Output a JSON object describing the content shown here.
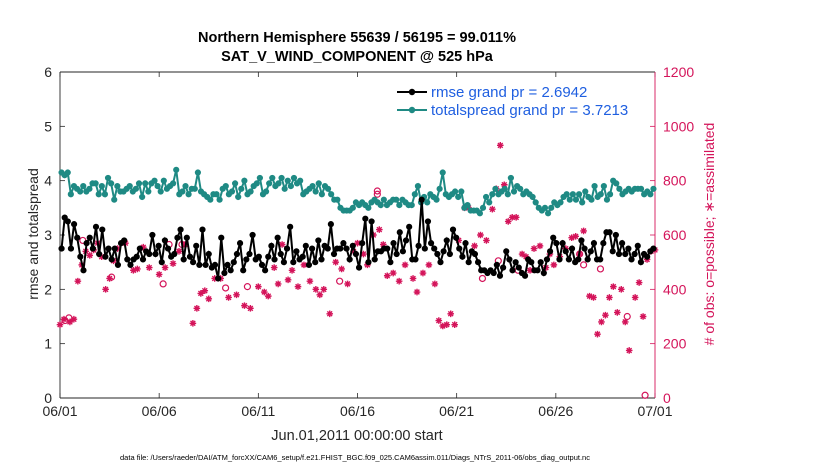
{
  "chart_data": {
    "type": "line",
    "title": "Northern Hemisphere 55639 / 56195 = 99.011%",
    "subtitle": "SAT_V_WIND_COMPONENT @ 525 hPa",
    "xlabel": "Jun.01,2011 00:00:00 start",
    "ylabel_left": "rmse and totalspread",
    "ylabel_right": "# of obs: o=possible; ∗=assimilated",
    "footer": "data file: /Users/raeder/DAI/ATM_forcXX/CAM6_setup/f.e21.FHIST_BGC.f09_025.CAM6assim.011/Diags_NTrS_2011-06/obs_diag_output.nc",
    "xlim": [
      0,
      30
    ],
    "ylim_left": [
      0,
      6
    ],
    "ylim_right": [
      0,
      1200
    ],
    "xticks": [
      0,
      5,
      10,
      15,
      20,
      25,
      30
    ],
    "xtick_labels": [
      "06/01",
      "06/06",
      "06/11",
      "06/16",
      "06/21",
      "06/26",
      "07/01"
    ],
    "yticks_left": [
      0,
      1,
      2,
      3,
      4,
      5,
      6
    ],
    "ytick_labels_left": [
      "0",
      "1",
      "2",
      "3",
      "4",
      "5",
      "6"
    ],
    "yticks_right": [
      0,
      200,
      400,
      600,
      800,
      1000,
      1200
    ],
    "ytick_labels_right": [
      "0",
      "200",
      "400",
      "600",
      "800",
      "1000",
      "1200"
    ],
    "colors": {
      "rmse": "#000000",
      "spread": "#1f8a84",
      "obs": "#d4145a",
      "legend_text": "#1f5fe0",
      "axis": "#262626",
      "right_axis": "#d4145a"
    },
    "legend": [
      {
        "name": "rmse",
        "label": "rmse grand pr = 2.6942"
      },
      {
        "name": "spread",
        "label": "totalspread grand pr = 3.7213"
      }
    ],
    "series": [
      {
        "name": "rmse",
        "values": [
          2.75,
          3.32,
          3.25,
          2.75,
          3.2,
          2.95,
          2.6,
          2.35,
          2.85,
          2.95,
          2.75,
          3.15,
          2.65,
          3.1,
          2.6,
          2.75,
          2.55,
          2.75,
          2.45,
          2.85,
          2.9,
          2.55,
          2.45,
          2.55,
          2.6,
          2.75,
          2.55,
          2.7,
          2.65,
          3.0,
          2.65,
          2.8,
          2.5,
          2.9,
          2.75,
          2.6,
          2.65,
          2.95,
          3.1,
          2.55,
          2.95,
          2.6,
          2.5,
          2.8,
          2.45,
          3.1,
          2.45,
          2.65,
          2.4,
          2.45,
          2.2,
          2.95,
          2.3,
          2.45,
          2.35,
          2.5,
          2.65,
          2.85,
          2.35,
          2.55,
          2.65,
          3.0,
          2.55,
          2.6,
          2.45,
          2.35,
          2.6,
          2.8,
          2.55,
          2.95,
          2.65,
          2.5,
          2.75,
          3.15,
          2.5,
          2.7,
          2.55,
          2.6,
          2.8,
          2.45,
          2.75,
          2.5,
          2.9,
          2.55,
          2.8,
          2.75,
          3.2,
          2.65,
          2.75,
          2.75,
          2.85,
          2.75,
          2.55,
          2.8,
          2.65,
          2.4,
          2.85,
          3.3,
          2.5,
          3.25,
          2.55,
          2.7,
          2.7,
          2.75,
          2.75,
          2.5,
          2.85,
          2.65,
          3.05,
          2.7,
          2.9,
          3.15,
          2.55,
          2.55,
          2.8,
          3.65,
          2.75,
          3.25,
          2.85,
          2.75,
          2.65,
          2.5,
          2.7,
          2.9,
          2.65,
          3.1,
          2.95,
          2.75,
          2.6,
          2.85,
          2.5,
          2.7,
          2.65,
          2.5,
          2.35,
          2.35,
          2.3,
          2.35,
          2.3,
          2.45,
          2.25,
          2.4,
          2.7,
          2.55,
          2.35,
          2.5,
          2.4,
          2.3,
          2.25,
          2.55,
          2.5,
          2.35,
          2.35,
          2.5,
          2.3,
          2.55,
          2.7,
          2.95,
          2.85,
          2.55,
          2.85,
          2.7,
          2.55,
          2.75,
          2.5,
          2.55,
          2.9,
          2.75,
          2.55,
          2.7,
          2.85,
          2.55,
          2.55,
          2.85,
          3.05,
          3.05,
          2.7,
          3.0,
          2.65,
          2.85,
          2.65,
          2.75,
          2.55,
          2.65,
          2.8,
          2.5,
          2.65,
          2.6,
          2.7,
          2.75
        ]
      },
      {
        "name": "spread",
        "values": [
          4.15,
          4.1,
          4.15,
          3.75,
          3.9,
          3.85,
          3.8,
          3.9,
          3.8,
          3.85,
          3.95,
          3.95,
          3.75,
          3.9,
          3.75,
          4.05,
          3.95,
          3.65,
          3.9,
          3.8,
          3.8,
          3.85,
          3.9,
          3.8,
          3.85,
          3.95,
          3.7,
          3.95,
          3.8,
          3.95,
          4.0,
          3.9,
          3.8,
          4.0,
          3.85,
          3.9,
          3.95,
          4.2,
          3.75,
          3.8,
          3.9,
          3.75,
          3.85,
          3.85,
          4.15,
          3.8,
          3.75,
          3.7,
          3.65,
          3.75,
          3.75,
          3.65,
          3.85,
          3.9,
          3.75,
          3.8,
          3.95,
          3.7,
          3.85,
          4.0,
          3.75,
          3.8,
          3.9,
          3.95,
          4.05,
          3.75,
          3.8,
          3.95,
          4.05,
          3.9,
          3.95,
          4.05,
          3.85,
          4.0,
          3.9,
          4.05,
          3.95,
          4.0,
          3.75,
          3.8,
          3.85,
          3.9,
          3.8,
          3.95,
          3.75,
          3.9,
          3.85,
          3.75,
          3.65,
          3.65,
          3.5,
          3.45,
          3.45,
          3.45,
          3.5,
          3.6,
          3.55,
          3.6,
          3.55,
          3.5,
          3.6,
          3.65,
          3.6,
          3.55,
          3.65,
          3.55,
          3.6,
          3.65,
          3.65,
          3.55,
          3.65,
          3.6,
          3.55,
          3.55,
          3.75,
          3.9,
          3.6,
          3.7,
          3.6,
          3.75,
          3.7,
          3.65,
          3.85,
          4.15,
          3.75,
          3.7,
          3.75,
          3.8,
          3.7,
          3.8,
          3.5,
          3.55,
          3.45,
          3.45,
          3.45,
          3.4,
          3.5,
          3.7,
          3.6,
          3.75,
          3.85,
          3.75,
          3.8,
          3.85,
          3.75,
          4.05,
          3.8,
          3.9,
          3.85,
          3.75,
          3.8,
          3.75,
          3.7,
          3.6,
          3.5,
          3.45,
          3.5,
          3.4,
          3.5,
          3.6,
          3.55,
          3.6,
          3.7,
          3.75,
          3.65,
          3.75,
          3.65,
          3.75,
          3.6,
          3.8,
          3.7,
          3.65,
          3.9,
          3.7,
          3.75,
          3.9,
          3.65,
          3.75,
          4.0,
          3.95,
          3.85,
          3.75,
          3.8,
          3.85,
          3.8,
          3.85,
          3.85,
          3.85,
          3.75,
          3.8,
          3.75,
          3.85
        ]
      },
      {
        "name": "possible",
        "marker": "o",
        "points": [
          [
            0.25,
            285
          ],
          [
            0.45,
            295
          ],
          [
            1.15,
            580
          ],
          [
            2.6,
            445
          ],
          [
            5.2,
            420
          ],
          [
            5.5,
            565
          ],
          [
            6.15,
            565
          ],
          [
            8.35,
            405
          ],
          [
            9.45,
            410
          ],
          [
            14.1,
            430
          ],
          [
            16.0,
            750
          ],
          [
            16.0,
            762
          ],
          [
            21.3,
            440
          ],
          [
            22.1,
            505
          ],
          [
            23.1,
            470
          ],
          [
            26.2,
            530
          ],
          [
            26.4,
            490
          ],
          [
            27.25,
            475
          ],
          [
            28.6,
            300
          ],
          [
            29.5,
            10
          ]
        ]
      },
      {
        "name": "assimilated",
        "marker": "*",
        "points": [
          [
            0.0,
            270
          ],
          [
            0.2,
            290
          ],
          [
            0.5,
            280
          ],
          [
            0.7,
            290
          ],
          [
            0.9,
            430
          ],
          [
            1.1,
            490
          ],
          [
            1.3,
            540
          ],
          [
            1.5,
            525
          ],
          [
            1.7,
            545
          ],
          [
            1.9,
            570
          ],
          [
            2.1,
            520
          ],
          [
            2.3,
            400
          ],
          [
            2.5,
            440
          ],
          [
            2.7,
            505
          ],
          [
            2.9,
            550
          ],
          [
            3.3,
            570
          ],
          [
            3.7,
            470
          ],
          [
            3.9,
            475
          ],
          [
            4.2,
            555
          ],
          [
            4.5,
            480
          ],
          [
            5.0,
            455
          ],
          [
            5.3,
            480
          ],
          [
            5.7,
            495
          ],
          [
            6.0,
            540
          ],
          [
            6.3,
            565
          ],
          [
            6.7,
            275
          ],
          [
            6.9,
            330
          ],
          [
            7.1,
            385
          ],
          [
            7.3,
            395
          ],
          [
            7.5,
            365
          ],
          [
            7.8,
            440
          ],
          [
            8.1,
            440
          ],
          [
            8.5,
            370
          ],
          [
            8.9,
            380
          ],
          [
            9.3,
            340
          ],
          [
            9.6,
            330
          ],
          [
            10.0,
            410
          ],
          [
            10.3,
            390
          ],
          [
            10.5,
            375
          ],
          [
            10.8,
            480
          ],
          [
            11.0,
            420
          ],
          [
            11.2,
            565
          ],
          [
            11.5,
            435
          ],
          [
            11.7,
            470
          ],
          [
            12.0,
            410
          ],
          [
            12.3,
            490
          ],
          [
            12.6,
            430
          ],
          [
            12.9,
            400
          ],
          [
            13.1,
            380
          ],
          [
            13.3,
            400
          ],
          [
            13.6,
            310
          ],
          [
            13.9,
            500
          ],
          [
            14.2,
            475
          ],
          [
            14.5,
            420
          ],
          [
            14.8,
            540
          ],
          [
            15.0,
            570
          ],
          [
            15.3,
            530
          ],
          [
            15.5,
            490
          ],
          [
            15.8,
            600
          ],
          [
            16.1,
            620
          ],
          [
            16.3,
            565
          ],
          [
            16.5,
            450
          ],
          [
            16.8,
            460
          ],
          [
            17.1,
            430
          ],
          [
            17.4,
            490
          ],
          [
            17.8,
            440
          ],
          [
            18.0,
            390
          ],
          [
            18.3,
            460
          ],
          [
            18.6,
            490
          ],
          [
            18.9,
            420
          ],
          [
            19.1,
            285
          ],
          [
            19.3,
            265
          ],
          [
            19.5,
            270
          ],
          [
            19.7,
            310
          ],
          [
            19.9,
            270
          ],
          [
            20.1,
            580
          ],
          [
            20.4,
            700
          ],
          [
            20.6,
            700
          ],
          [
            20.9,
            560
          ],
          [
            21.2,
            600
          ],
          [
            21.5,
            580
          ],
          [
            21.8,
            695
          ],
          [
            22.0,
            770
          ],
          [
            22.2,
            930
          ],
          [
            22.4,
            785
          ],
          [
            22.6,
            650
          ],
          [
            22.8,
            665
          ],
          [
            23.0,
            665
          ],
          [
            23.3,
            530
          ],
          [
            23.5,
            520
          ],
          [
            23.7,
            470
          ],
          [
            23.9,
            550
          ],
          [
            24.2,
            560
          ],
          [
            24.5,
            480
          ],
          [
            24.7,
            530
          ],
          [
            24.9,
            490
          ],
          [
            25.2,
            520
          ],
          [
            25.5,
            550
          ],
          [
            25.8,
            590
          ],
          [
            26.0,
            595
          ],
          [
            26.2,
            530
          ],
          [
            26.4,
            615
          ],
          [
            26.7,
            375
          ],
          [
            26.9,
            370
          ],
          [
            27.1,
            235
          ],
          [
            27.3,
            280
          ],
          [
            27.5,
            305
          ],
          [
            27.7,
            370
          ],
          [
            27.9,
            410
          ],
          [
            28.1,
            315
          ],
          [
            28.3,
            400
          ],
          [
            28.5,
            280
          ],
          [
            28.7,
            175
          ],
          [
            29.0,
            370
          ],
          [
            29.2,
            425
          ],
          [
            29.4,
            300
          ],
          [
            29.6,
            510
          ],
          [
            29.8,
            540
          ],
          [
            30.0,
            545
          ]
        ]
      }
    ]
  }
}
